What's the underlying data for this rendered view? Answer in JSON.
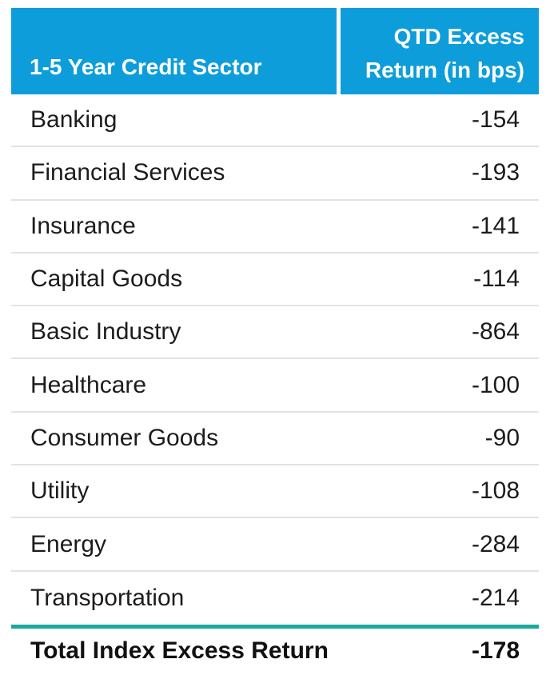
{
  "colors": {
    "header_bg": "#0D9DDB",
    "header_text": "#FFFFFF",
    "row_divider": "#E2E2E2",
    "total_rule": "#1AA99C",
    "body_text": "#1C1C1C"
  },
  "table": {
    "columns": [
      {
        "label": "1-5 Year Credit Sector"
      },
      {
        "label": "QTD Excess Return (in bps)"
      }
    ],
    "rows": [
      {
        "sector": "Banking",
        "value": "-154"
      },
      {
        "sector": "Financial Services",
        "value": "-193"
      },
      {
        "sector": "Insurance",
        "value": "-141"
      },
      {
        "sector": "Capital Goods",
        "value": "-114"
      },
      {
        "sector": "Basic Industry",
        "value": "-864"
      },
      {
        "sector": "Healthcare",
        "value": "-100"
      },
      {
        "sector": "Consumer Goods",
        "value": "-90"
      },
      {
        "sector": "Utility",
        "value": "-108"
      },
      {
        "sector": "Energy",
        "value": "-284"
      },
      {
        "sector": "Transportation",
        "value": "-214"
      }
    ],
    "total": {
      "label": "Total Index Excess Return",
      "value": "-178"
    }
  },
  "chart_data": {
    "type": "table",
    "title": "1-5 Year Credit Sector — QTD Excess Return (in bps)",
    "columns": [
      "1-5 Year Credit Sector",
      "QTD Excess Return (in bps)"
    ],
    "categories": [
      "Banking",
      "Financial Services",
      "Insurance",
      "Capital Goods",
      "Basic Industry",
      "Healthcare",
      "Consumer Goods",
      "Utility",
      "Energy",
      "Transportation"
    ],
    "values": [
      -154,
      -193,
      -141,
      -114,
      -864,
      -100,
      -90,
      -108,
      -284,
      -214
    ],
    "total": {
      "label": "Total Index Excess Return",
      "value": -178
    },
    "unit": "bps"
  }
}
